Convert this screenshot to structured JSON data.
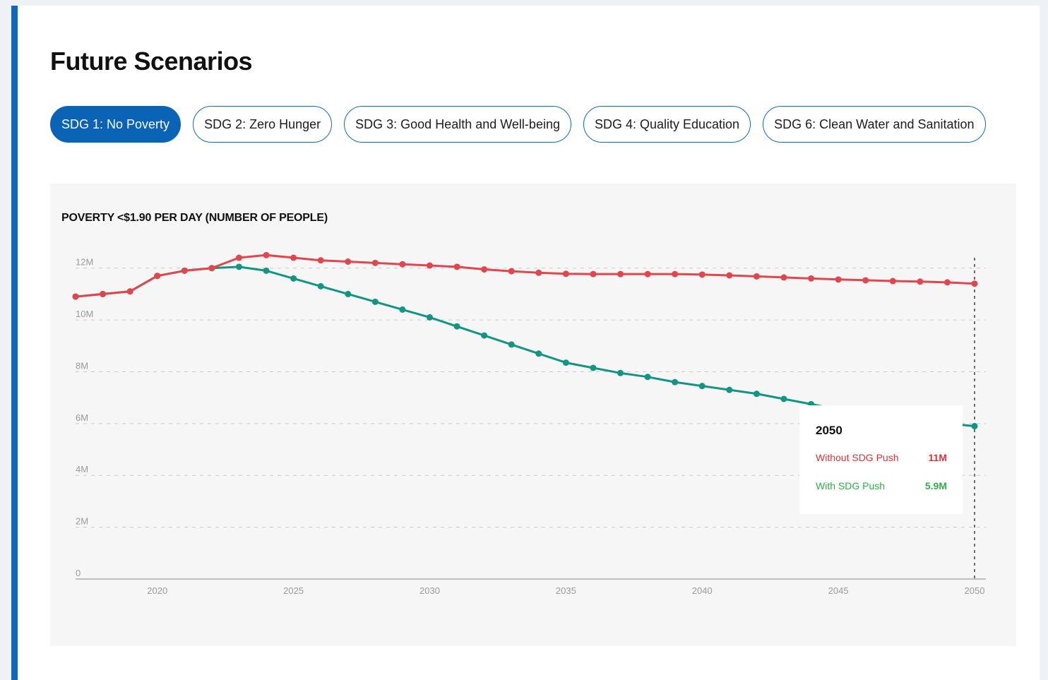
{
  "page": {
    "heading": "Future Scenarios"
  },
  "tabs": [
    {
      "label": "SDG 1: No Poverty",
      "active": true
    },
    {
      "label": "SDG 2: Zero Hunger",
      "active": false
    },
    {
      "label": "SDG 3: Good Health and Well-being",
      "active": false
    },
    {
      "label": "SDG 4: Quality Education",
      "active": false
    },
    {
      "label": "SDG 6: Clean Water and Sanitation",
      "active": false
    }
  ],
  "colors": {
    "accent": "#1467b8",
    "without_push": "#e0464d",
    "with_push": "#129582",
    "tooltip_with_text": "#2fae4a"
  },
  "chart_data": {
    "type": "line",
    "title": "POVERTY <$1.90 PER DAY (NUMBER OF PEOPLE)",
    "x": [
      2017,
      2018,
      2019,
      2020,
      2021,
      2022,
      2023,
      2024,
      2025,
      2026,
      2027,
      2028,
      2029,
      2030,
      2031,
      2032,
      2033,
      2034,
      2035,
      2036,
      2037,
      2038,
      2039,
      2040,
      2041,
      2042,
      2043,
      2044,
      2045,
      2046,
      2047,
      2048,
      2049,
      2050
    ],
    "series": [
      {
        "name": "Without SDG Push",
        "values": [
          10.9,
          11.0,
          11.1,
          11.7,
          11.9,
          12.0,
          12.4,
          12.5,
          12.4,
          12.3,
          12.25,
          12.2,
          12.15,
          12.1,
          12.05,
          11.95,
          11.88,
          11.82,
          11.78,
          11.77,
          11.77,
          11.77,
          11.77,
          11.75,
          11.72,
          11.68,
          11.64,
          11.6,
          11.56,
          11.53,
          11.5,
          11.48,
          11.45,
          11.4
        ]
      },
      {
        "name": "With SDG Push",
        "values": [
          10.9,
          11.0,
          11.1,
          11.7,
          11.9,
          12.0,
          12.05,
          11.9,
          11.6,
          11.3,
          11.0,
          10.7,
          10.4,
          10.1,
          9.75,
          9.4,
          9.05,
          8.7,
          8.35,
          8.15,
          7.95,
          7.8,
          7.6,
          7.45,
          7.3,
          7.15,
          6.95,
          6.75,
          6.55,
          6.4,
          6.25,
          6.1,
          6.0,
          5.9
        ]
      }
    ],
    "yticks": [
      "0",
      "2M",
      "4M",
      "6M",
      "8M",
      "10M",
      "12M"
    ],
    "ytick_values": [
      0,
      2,
      4,
      6,
      8,
      10,
      12
    ],
    "xticks": [
      2020,
      2025,
      2030,
      2035,
      2040,
      2045,
      2050
    ],
    "ylim": [
      0,
      13
    ],
    "xlim": [
      2017,
      2050
    ],
    "grid": true,
    "marker_year": 2050,
    "tooltip": {
      "year": "2050",
      "rows": [
        {
          "label": "Without SDG Push",
          "value": "11M"
        },
        {
          "label": "With SDG Push",
          "value": "5.9M"
        }
      ]
    }
  }
}
